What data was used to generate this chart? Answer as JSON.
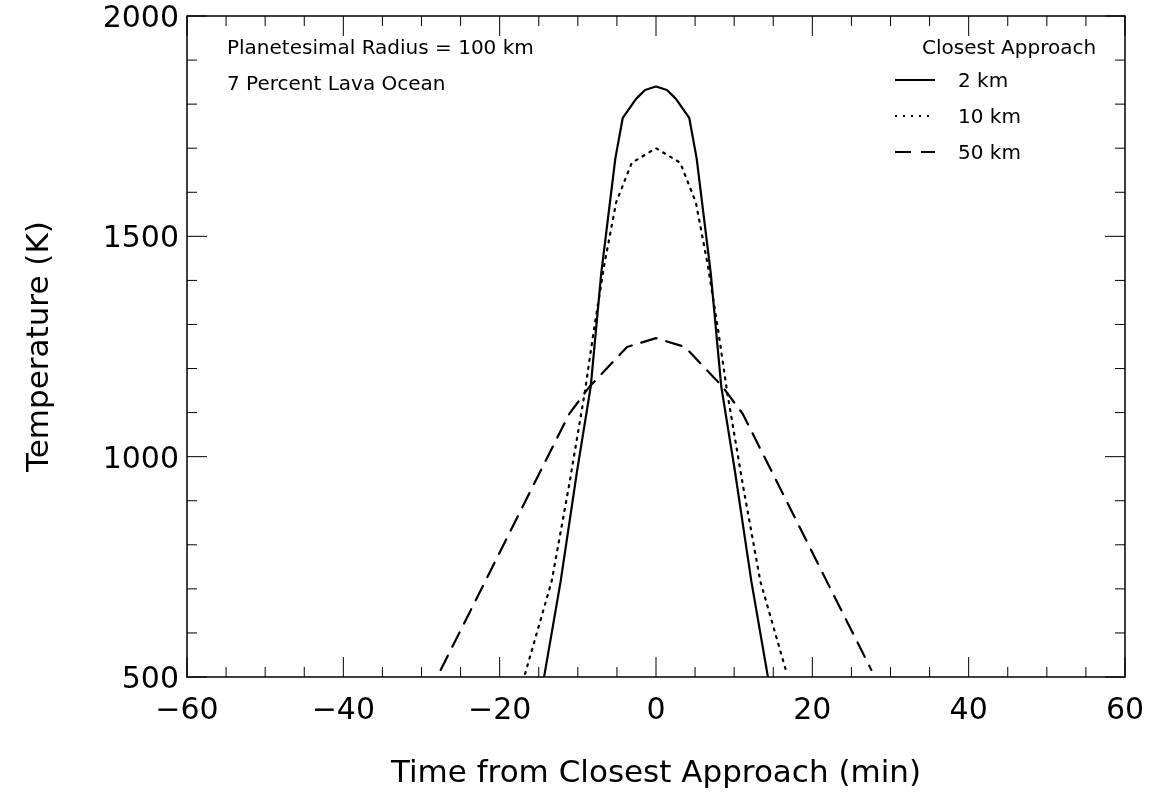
{
  "chart_data": {
    "type": "line",
    "xlabel": "Time from Closest Approach (min)",
    "ylabel": "Temperature (K)",
    "legend_title": "Closest Approach",
    "legend": "top right",
    "annotations": [
      "Planetesimal Radius = 100 km",
      "7 Percent Lava Ocean"
    ],
    "xlim": [
      -60,
      60
    ],
    "ylim": [
      500,
      2000
    ],
    "xticks": [
      -60,
      {
        "value": -55,
        "label": null
      },
      {
        "value": -50,
        "label": null
      },
      {
        "value": -45,
        "label": null
      },
      -40,
      {
        "value": -35,
        "label": null
      },
      {
        "value": -30,
        "label": null
      },
      {
        "value": -25,
        "label": null
      },
      -20,
      {
        "value": -15,
        "label": null
      },
      {
        "value": -10,
        "label": null
      },
      {
        "value": -5,
        "label": null
      },
      0,
      {
        "value": 5,
        "label": null
      },
      {
        "value": 10,
        "label": null
      },
      {
        "value": 15,
        "label": null
      },
      20,
      {
        "value": 25,
        "label": null
      },
      {
        "value": 30,
        "label": null
      },
      {
        "value": 35,
        "label": null
      },
      40,
      {
        "value": 45,
        "label": null
      },
      {
        "value": 50,
        "label": null
      },
      {
        "value": 55,
        "label": null
      },
      60
    ],
    "yticks": [
      500,
      {
        "value": 600,
        "label": null
      },
      {
        "value": 700,
        "label": null
      },
      {
        "value": 800,
        "label": null
      },
      {
        "value": 900,
        "label": null
      },
      1000,
      {
        "value": 1100,
        "label": null
      },
      {
        "value": 1200,
        "label": null
      },
      {
        "value": 1300,
        "label": null
      },
      {
        "value": 1400,
        "label": null
      },
      1500,
      {
        "value": 1600,
        "label": null
      },
      {
        "value": 1700,
        "label": null
      },
      {
        "value": 1800,
        "label": null
      },
      {
        "value": 1900,
        "label": null
      },
      2000
    ],
    "series": [
      {
        "name": "2 km",
        "color": "#000000",
        "line_style": "solid",
        "x": [
          -14.3,
          -12.2,
          -10.1,
          -8.35,
          -7.0,
          -5.2,
          -4.25,
          -2.55,
          -1.4,
          0,
          1.4,
          2.55,
          4.25,
          5.2,
          7.0,
          8.35,
          10.1,
          12.2,
          14.3
        ],
        "values": [
          502,
          717,
          967,
          1159,
          1417,
          1677,
          1769,
          1812,
          1832,
          1840,
          1832,
          1812,
          1769,
          1677,
          1417,
          1159,
          967,
          717,
          502
        ]
      },
      {
        "name": "10 km",
        "color": "#000000",
        "line_style": "dotted",
        "x": [
          -16.75,
          -13.35,
          -11.1,
          -9.1,
          -7.95,
          -6.6,
          -5.1,
          -3.1,
          0,
          3.1,
          5.1,
          6.6,
          7.95,
          9.1,
          11.1,
          13.35,
          16.75
        ],
        "values": [
          507,
          717,
          937,
          1147,
          1287,
          1437,
          1577,
          1667,
          1700,
          1667,
          1577,
          1437,
          1287,
          1147,
          937,
          717,
          507
        ]
      },
      {
        "name": "50 km",
        "color": "#000000",
        "line_style": "dashed",
        "x": [
          -27.55,
          -21.85,
          -16.2,
          -11.1,
          -8.5,
          -3.7,
          0,
          3.7,
          8.5,
          11.1,
          16.2,
          21.85,
          27.55
        ],
        "values": [
          516,
          717,
          917,
          1097,
          1159,
          1249,
          1269,
          1249,
          1159,
          1097,
          917,
          717,
          516
        ]
      }
    ]
  }
}
